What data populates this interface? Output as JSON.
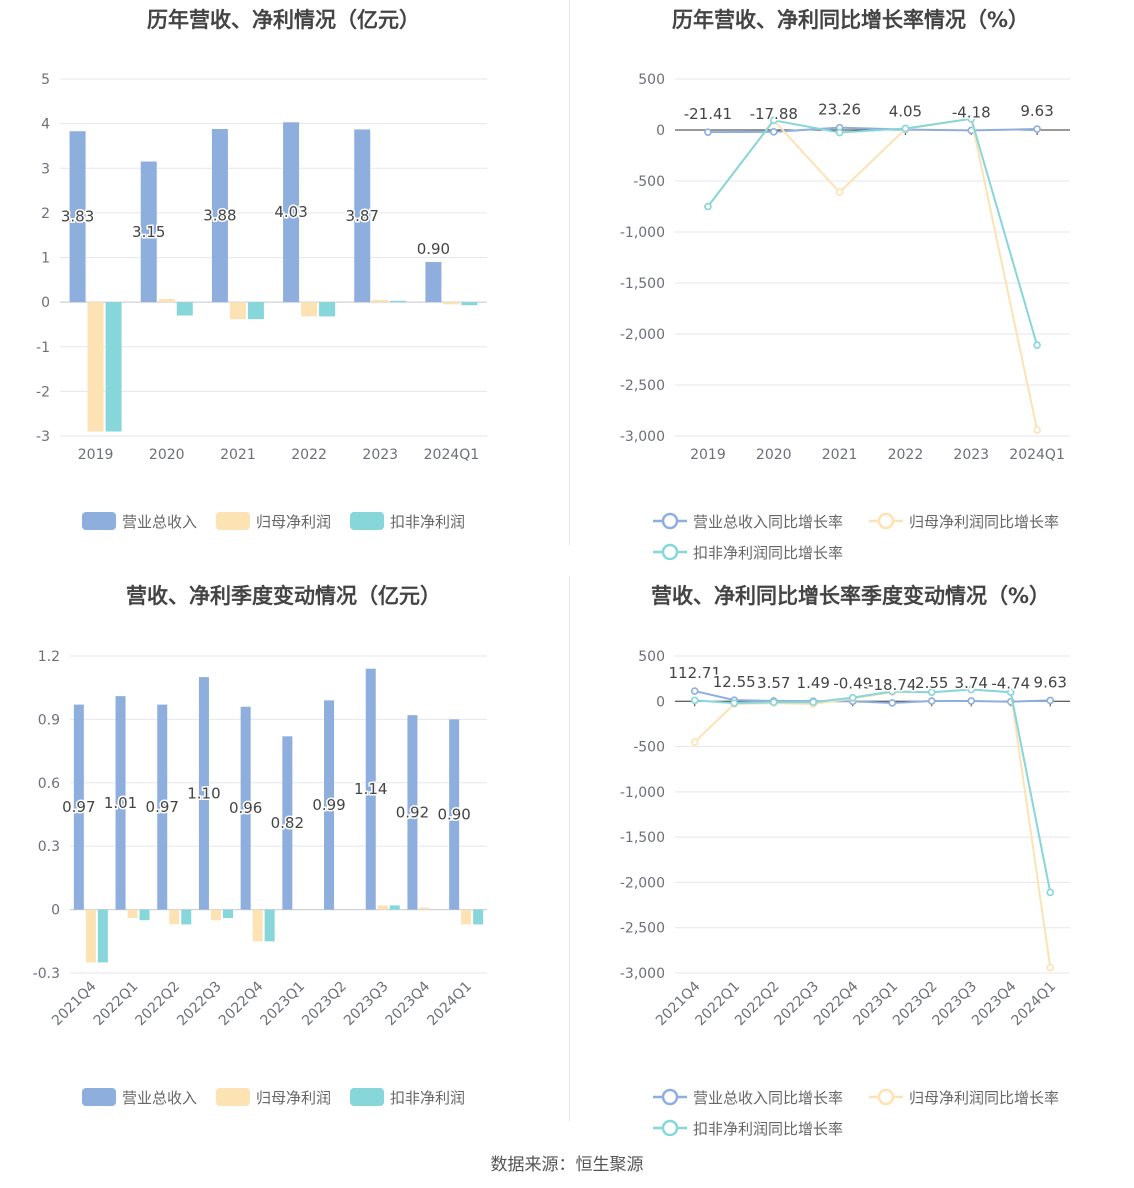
{
  "footer": "数据来源：恒生聚源",
  "colors": {
    "revenue": "#8eaedd",
    "net_profit": "#fde2b4",
    "deducted": "#86d6da",
    "grid": "#e4e7ee",
    "axis_text": "#6e7079",
    "label": "#444444"
  },
  "chart_data": [
    {
      "id": "annual-amount",
      "type": "bar",
      "title": "历年营收、净利情况（亿元）",
      "categories": [
        "2019",
        "2020",
        "2021",
        "2022",
        "2023",
        "2024Q1"
      ],
      "ylim": [
        -3,
        5
      ],
      "yticks": [
        "-3",
        "-2",
        "-1",
        "0",
        "1",
        "2",
        "3",
        "4",
        "5"
      ],
      "ytick_values": [
        -3,
        -2,
        -1,
        0,
        1,
        2,
        3,
        4,
        5
      ],
      "grid": true,
      "legend_position": "bottom",
      "series": [
        {
          "name": "营业总收入",
          "values": [
            3.83,
            3.15,
            3.88,
            4.03,
            3.87,
            0.9
          ],
          "labels": [
            "3.83",
            "3.15",
            "3.88",
            "4.03",
            "3.87",
            "0.90"
          ]
        },
        {
          "name": "归母净利润",
          "values": [
            -2.9,
            0.07,
            -0.38,
            -0.32,
            0.05,
            -0.05
          ]
        },
        {
          "name": "扣非净利润",
          "values": [
            -2.9,
            -0.3,
            -0.38,
            -0.32,
            0.03,
            -0.07
          ]
        }
      ]
    },
    {
      "id": "annual-growth",
      "type": "line",
      "title": "历年营收、净利同比增长率情况（%）",
      "categories": [
        "2019",
        "2020",
        "2021",
        "2022",
        "2023",
        "2024Q1"
      ],
      "ylim": [
        -3000,
        500
      ],
      "yticks": [
        "-3,000",
        "-2,500",
        "-2,000",
        "-1,500",
        "-1,000",
        "-500",
        "0",
        "500"
      ],
      "ytick_values": [
        -3000,
        -2500,
        -2000,
        -1500,
        -1000,
        -500,
        0,
        500
      ],
      "grid": true,
      "legend_position": "bottom",
      "series": [
        {
          "name": "营业总收入同比增长率",
          "values": [
            -21.41,
            -17.88,
            23.26,
            4.05,
            -4.18,
            9.63
          ],
          "labels": [
            "-21.41",
            "-17.88",
            "23.26",
            "4.05",
            "-4.18",
            "9.63"
          ]
        },
        {
          "name": "归母净利润同比增长率",
          "values": [
            -750,
            95,
            -610,
            10,
            110,
            -2940
          ]
        },
        {
          "name": "扣非净利润同比增长率",
          "values": [
            -750,
            95,
            -25,
            15,
            110,
            -2110
          ]
        }
      ]
    },
    {
      "id": "quarterly-amount",
      "type": "bar",
      "title": "营收、净利季度变动情况（亿元）",
      "categories": [
        "2021Q4",
        "2022Q1",
        "2022Q2",
        "2022Q3",
        "2022Q4",
        "2023Q1",
        "2023Q2",
        "2023Q3",
        "2023Q4",
        "2024Q1"
      ],
      "ylim": [
        -0.3,
        1.2
      ],
      "yticks": [
        "-0.3",
        "0",
        "0.3",
        "0.6",
        "0.9",
        "1.2"
      ],
      "ytick_values": [
        -0.3,
        0,
        0.3,
        0.6,
        0.9,
        1.2
      ],
      "grid": true,
      "legend_position": "bottom",
      "series": [
        {
          "name": "营业总收入",
          "values": [
            0.97,
            1.01,
            0.97,
            1.1,
            0.96,
            0.82,
            0.99,
            1.14,
            0.92,
            0.9
          ],
          "labels": [
            "0.97",
            "1.01",
            "0.97",
            "1.10",
            "0.96",
            "0.82",
            "0.99",
            "1.14",
            "0.92",
            "0.90"
          ]
        },
        {
          "name": "归母净利润",
          "values": [
            -0.25,
            -0.04,
            -0.07,
            -0.05,
            -0.15,
            0.0,
            0.0,
            0.02,
            0.01,
            -0.07
          ]
        },
        {
          "name": "扣非净利润",
          "values": [
            -0.25,
            -0.05,
            -0.07,
            -0.04,
            -0.15,
            0.0,
            0.0,
            0.02,
            0.0,
            -0.07
          ]
        }
      ]
    },
    {
      "id": "quarterly-growth",
      "type": "line",
      "title": "营收、净利同比增长率季度变动情况（%）",
      "categories": [
        "2021Q4",
        "2022Q1",
        "2022Q2",
        "2022Q3",
        "2022Q4",
        "2023Q1",
        "2023Q2",
        "2023Q3",
        "2023Q4",
        "2024Q1"
      ],
      "ylim": [
        -3000,
        500
      ],
      "yticks": [
        "-3,000",
        "-2,500",
        "-2,000",
        "-1,500",
        "-1,000",
        "-500",
        "0",
        "500"
      ],
      "ytick_values": [
        -3000,
        -2500,
        -2000,
        -1500,
        -1000,
        -500,
        0,
        500
      ],
      "grid": true,
      "legend_position": "bottom",
      "series": [
        {
          "name": "营业总收入同比增长率",
          "values": [
            112.71,
            12.55,
            3.57,
            1.49,
            -0.49,
            -18.74,
            2.55,
            3.74,
            -4.74,
            9.63
          ],
          "labels": [
            "112.71",
            "12.55",
            "3.57",
            "1.49",
            "-0.49",
            "-18.74",
            "2.55",
            "3.74",
            "-4.74",
            "9.63"
          ]
        },
        {
          "name": "归母净利润同比增长率",
          "values": [
            -450,
            -30,
            -20,
            -30,
            30,
            100,
            100,
            130,
            100,
            -2940
          ]
        },
        {
          "name": "扣非净利润同比增长率",
          "values": [
            10,
            -20,
            -10,
            -10,
            40,
            110,
            100,
            130,
            100,
            -2110
          ]
        }
      ]
    }
  ]
}
